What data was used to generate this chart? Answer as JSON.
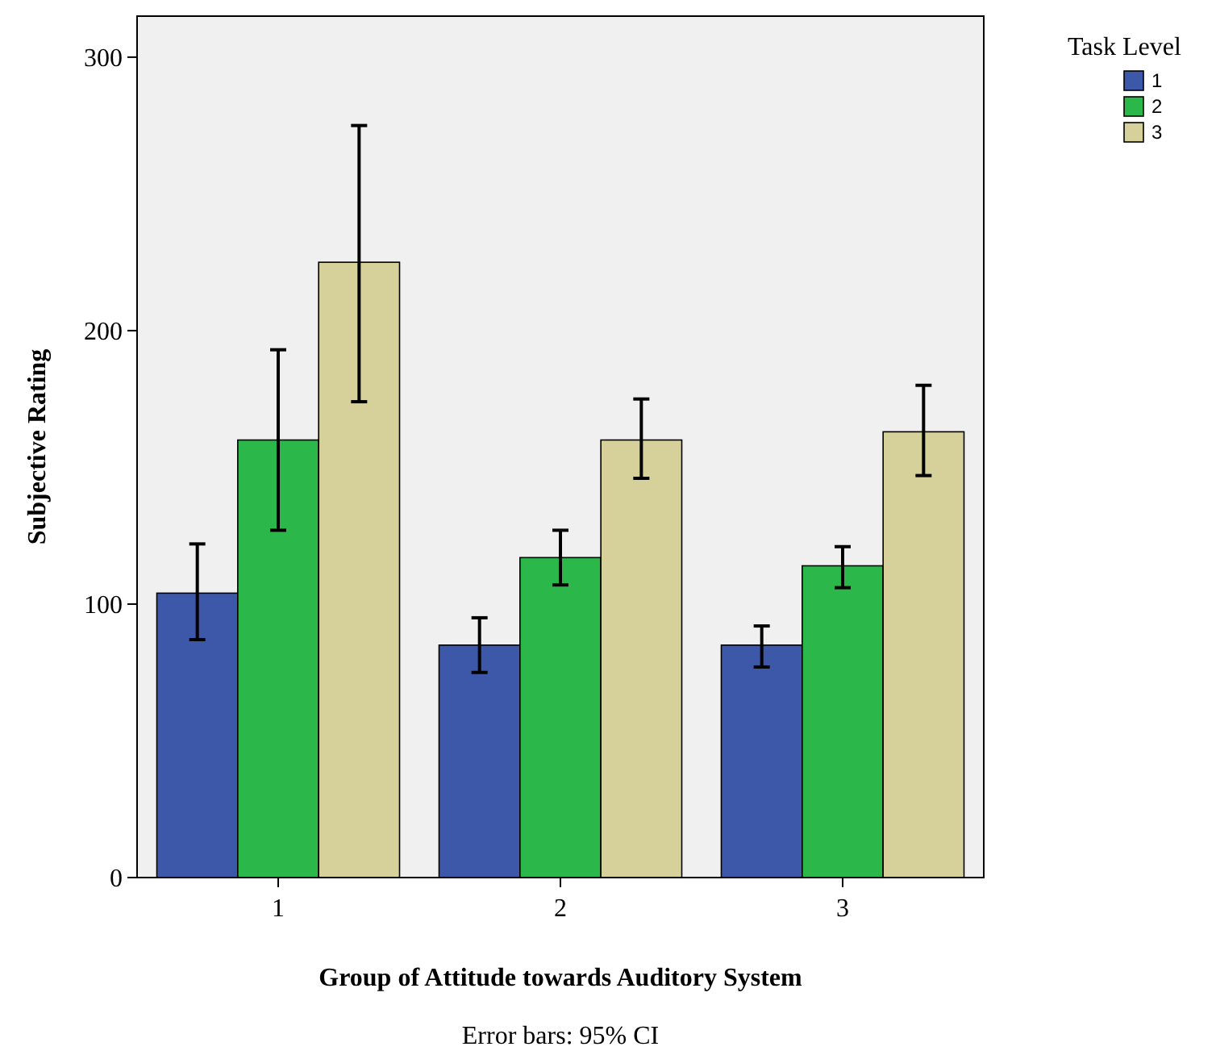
{
  "chart_data": {
    "type": "bar",
    "xlabel": "Group of Attitude towards Auditory System",
    "ylabel": "Subjective Rating",
    "legend_title": "Task Level",
    "annotations": [
      "Error bars: 95% CI"
    ],
    "categories": [
      "1",
      "2",
      "3"
    ],
    "series": [
      {
        "name": "1",
        "color": "#3d58a8",
        "values": [
          104,
          85,
          85
        ],
        "errors": [
          [
            87,
            122
          ],
          [
            75,
            95
          ],
          [
            77,
            92
          ]
        ]
      },
      {
        "name": "2",
        "color": "#2cb74a",
        "values": [
          160,
          117,
          114
        ],
        "errors": [
          [
            127,
            193
          ],
          [
            107,
            127
          ],
          [
            106,
            121
          ]
        ]
      },
      {
        "name": "3",
        "color": "#d6d09a",
        "values": [
          225,
          160,
          163
        ],
        "errors": [
          [
            174,
            275
          ],
          [
            146,
            175
          ],
          [
            147,
            180
          ]
        ]
      }
    ],
    "ylim": [
      0,
      315
    ],
    "yticks": [
      0,
      100,
      200,
      300
    ],
    "grid": false,
    "legend": "top right"
  }
}
